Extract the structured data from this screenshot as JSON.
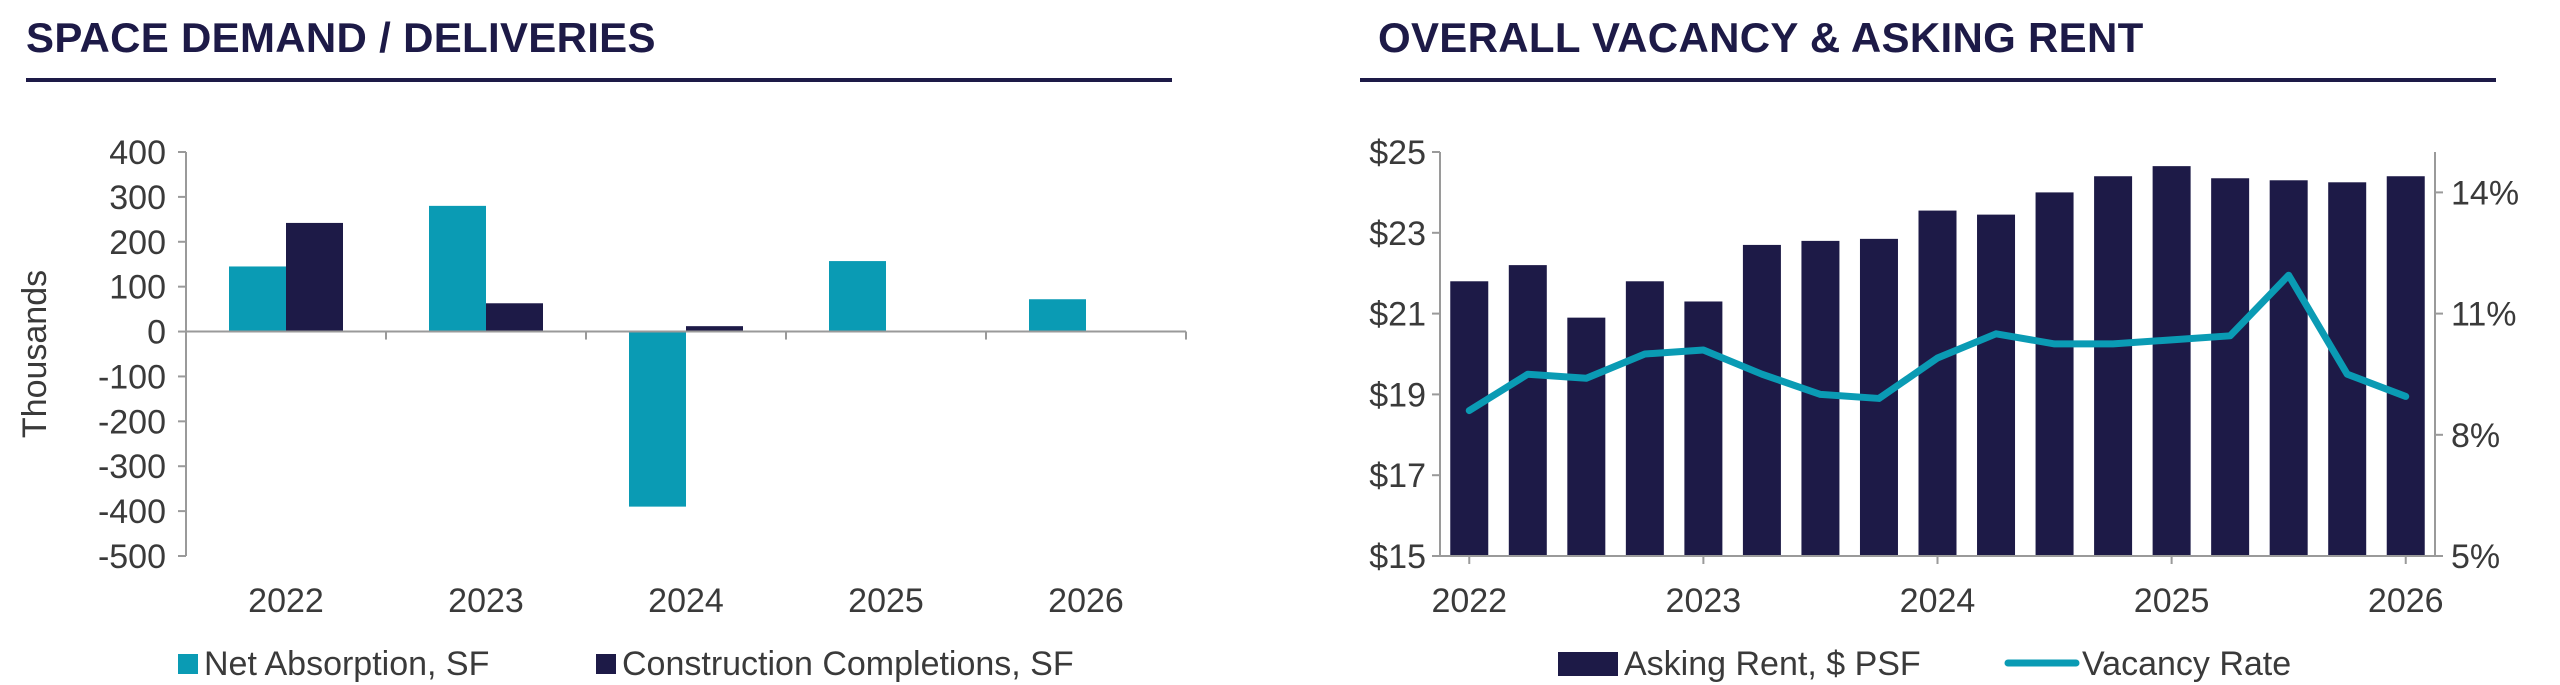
{
  "colors": {
    "teal": "#0a9bb4",
    "navy": "#1d1a47",
    "axis": "#9a9a9a",
    "text": "#3a3a3a"
  },
  "chart_data": [
    {
      "type": "bar",
      "title": "SPACE DEMAND / DELIVERIES",
      "ylabel": "Thousands",
      "xlabel": "",
      "ylim": [
        -500,
        400
      ],
      "yticks": [
        400,
        300,
        200,
        100,
        0,
        -100,
        -200,
        -300,
        -400,
        -500
      ],
      "categories": [
        "2022",
        "2023",
        "2024",
        "2025",
        "2026"
      ],
      "series": [
        {
          "name": "Net Absorption, SF",
          "color": "#0a9bb4",
          "values": [
            145,
            280,
            -390,
            157,
            72
          ]
        },
        {
          "name": "Construction Completions, SF",
          "color": "#1d1a47",
          "values": [
            242,
            63,
            12,
            0,
            0
          ]
        }
      ],
      "legend": "bottom"
    },
    {
      "type": "bar+line",
      "title": "OVERALL VACANCY & ASKING RENT",
      "x_labels": [
        "2022",
        "2023",
        "2024",
        "2025",
        "2026"
      ],
      "y_left": {
        "ticks": [
          "$25",
          "$23",
          "$21",
          "$19",
          "$17",
          "$15"
        ],
        "range": [
          15,
          25
        ]
      },
      "y_right": {
        "ticks": [
          "14%",
          "11%",
          "8%",
          "5%"
        ],
        "range": [
          5,
          15
        ]
      },
      "series": [
        {
          "name": "Asking Rent, $ PSF",
          "type": "bar",
          "axis": "left",
          "color": "#1d1a47",
          "values": [
            21.8,
            22.2,
            20.9,
            21.8,
            21.3,
            22.7,
            22.8,
            22.85,
            23.55,
            23.45,
            24.0,
            24.4,
            24.65,
            24.35,
            24.3,
            24.25,
            24.4
          ]
        },
        {
          "name": "Vacancy Rate",
          "type": "line",
          "axis": "right",
          "color": "#0a9bb4",
          "values": [
            8.6,
            9.5,
            9.4,
            10.0,
            10.1,
            9.5,
            9.0,
            8.9,
            9.9,
            10.5,
            10.25,
            10.25,
            10.35,
            10.45,
            11.95,
            9.5,
            8.95
          ]
        }
      ],
      "legend": "bottom"
    }
  ]
}
